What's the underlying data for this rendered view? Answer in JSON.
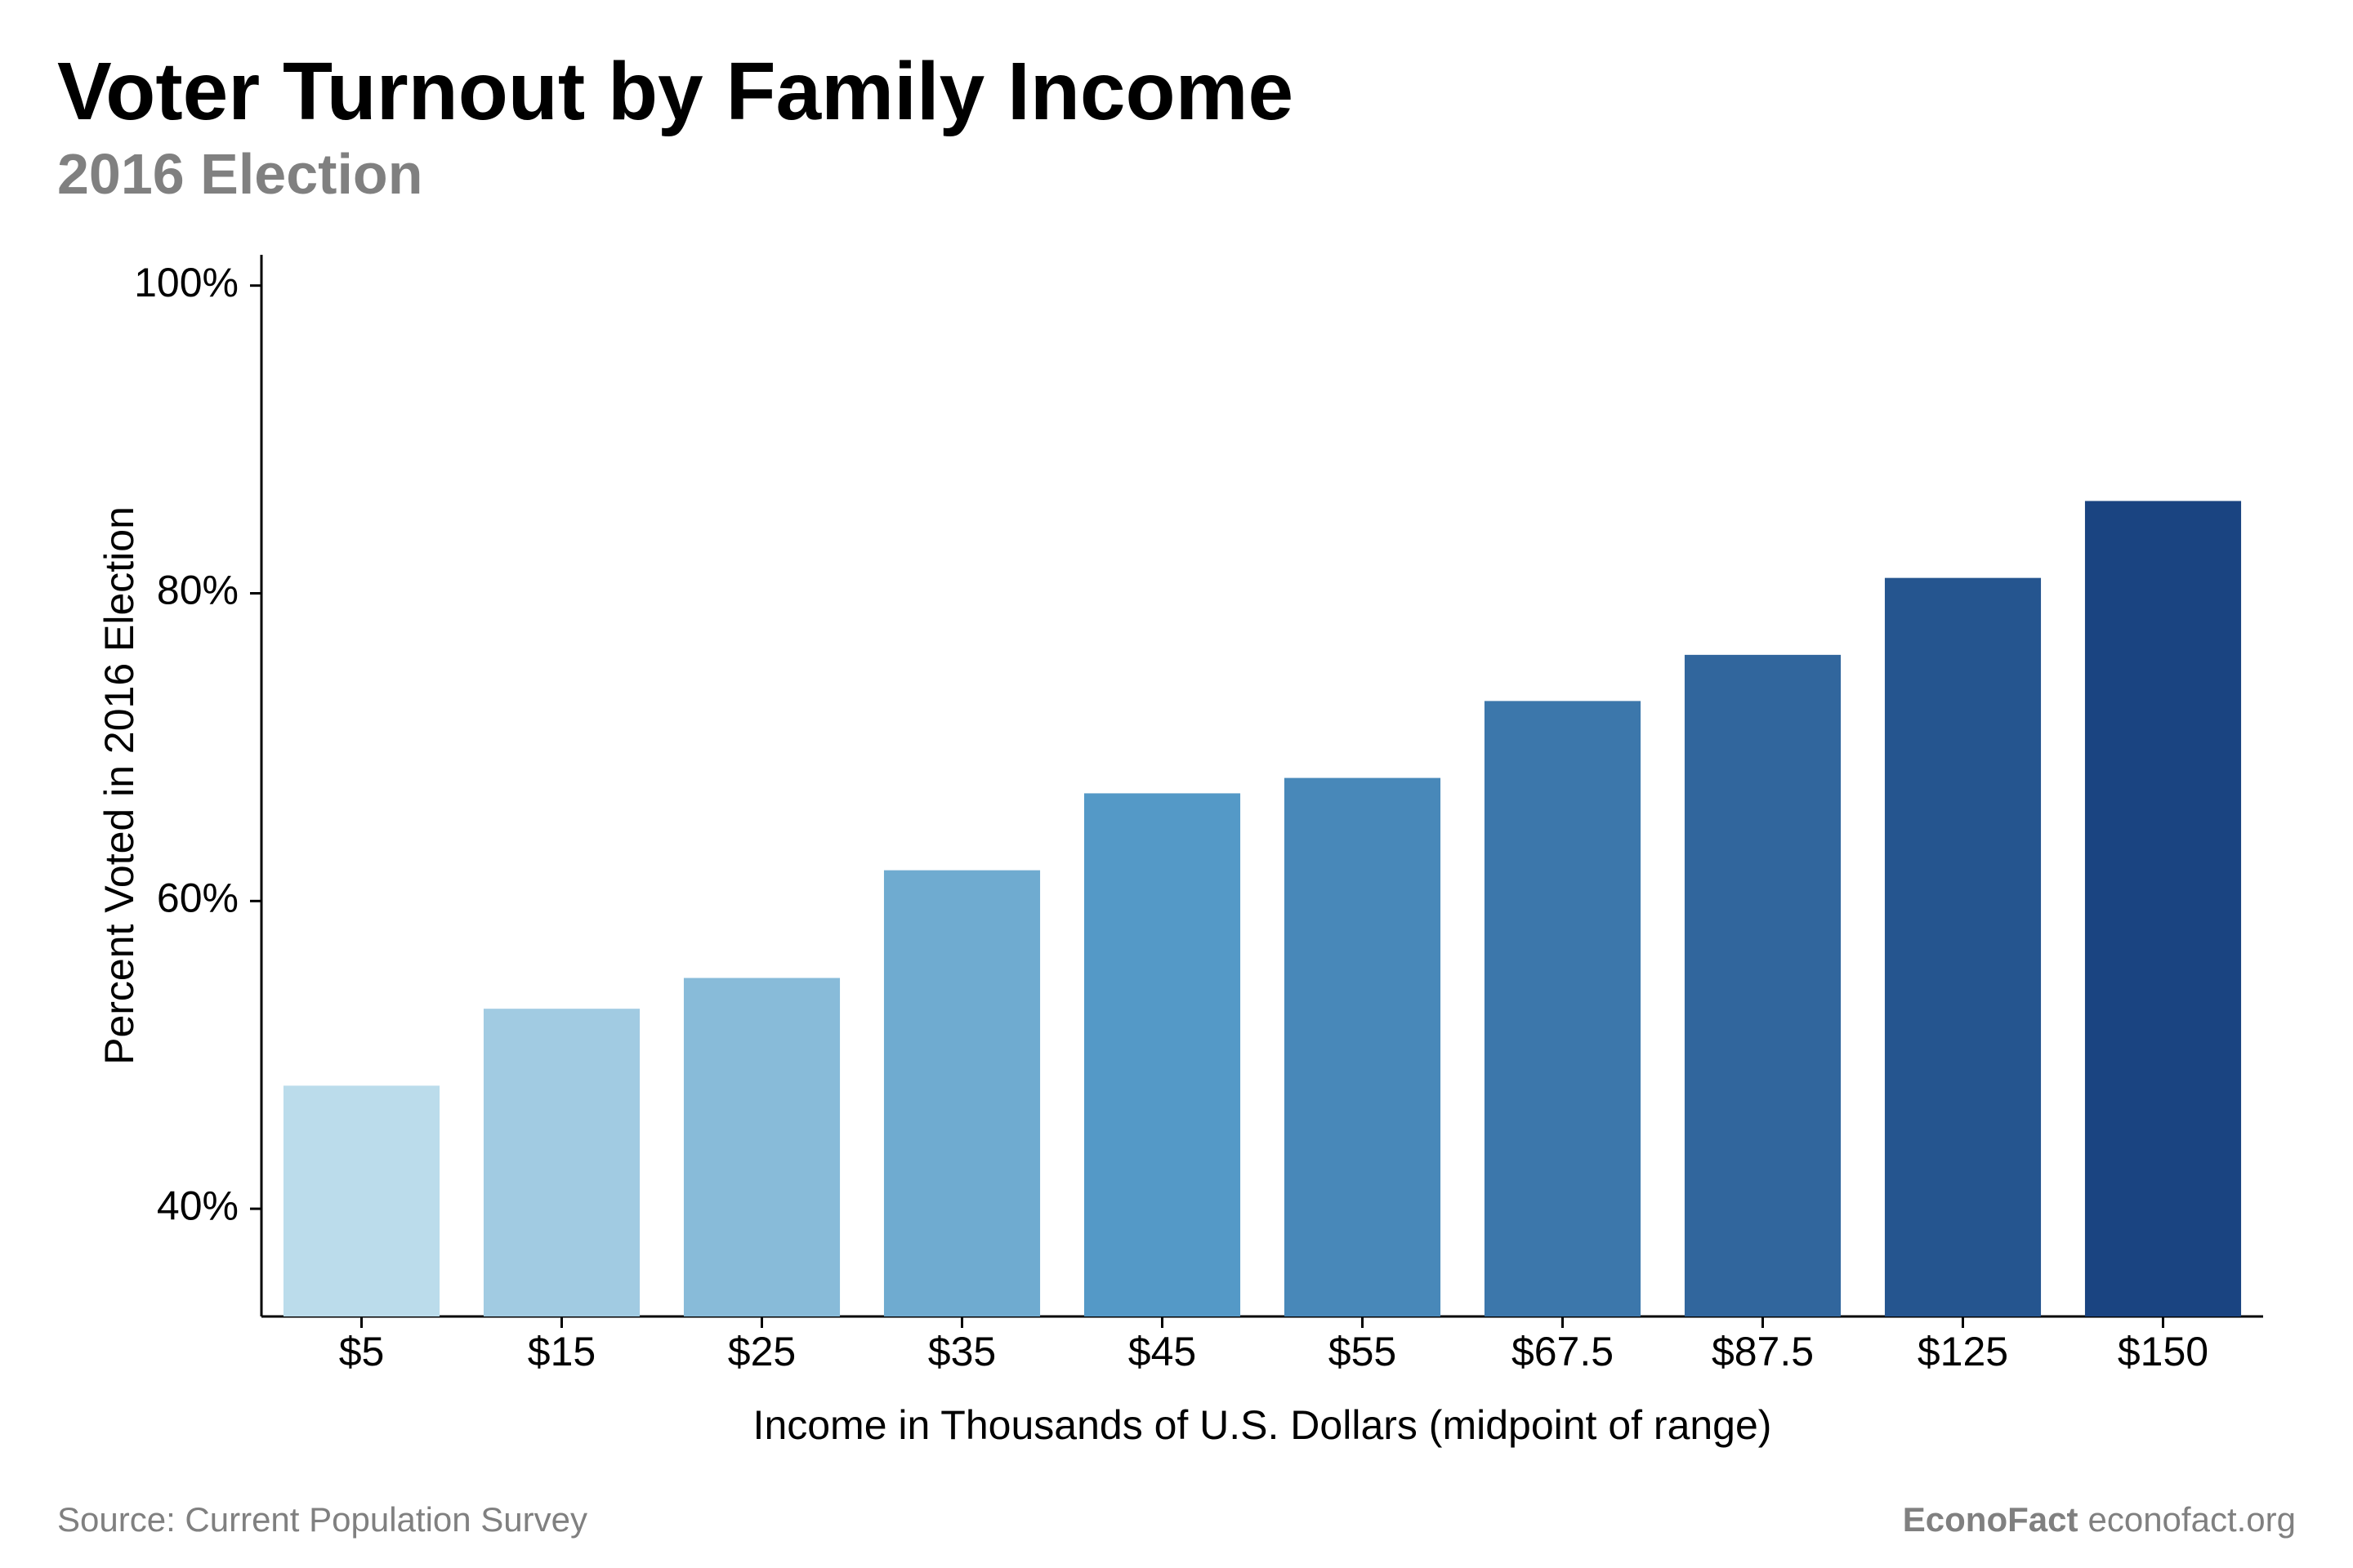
{
  "title": "Voter Turnout by Family Income",
  "subtitle": "2016 Election",
  "title_fontsize": 100,
  "title_color": "#000000",
  "subtitle_fontsize": 70,
  "subtitle_color": "#808080",
  "footer": {
    "source_label": "Source: Current Population Survey",
    "brand": "EconoFact",
    "site": "econofact.org",
    "fontsize": 42,
    "color": "#808080"
  },
  "chart": {
    "type": "bar",
    "background_color": "#ffffff",
    "axis_color": "#000000",
    "axis_width": 3,
    "tick_len": 14,
    "tick_width": 3,
    "tick_label_fontsize": 50,
    "tick_label_color": "#000000",
    "axis_title_fontsize": 50,
    "axis_title_color": "#000000",
    "x": {
      "title": "Income in Thousands of U.S. Dollars (midpoint of range)",
      "labels": [
        "$5",
        "$15",
        "$25",
        "$35",
        "$45",
        "$55",
        "$67.5",
        "$87.5",
        "$125",
        "$150"
      ]
    },
    "y": {
      "title": "Percent Voted in 2016 Election",
      "min": 33,
      "max": 102,
      "ticks": [
        40,
        60,
        80,
        100
      ],
      "tick_labels": [
        "40%",
        "60%",
        "80%",
        "100%"
      ]
    },
    "bars": {
      "values": [
        48,
        53,
        55,
        62,
        67,
        68,
        73,
        76,
        81,
        86
      ],
      "colors": [
        "#bbdceb",
        "#a1cbe2",
        "#88bbd9",
        "#6fabd0",
        "#5499c7",
        "#4888b9",
        "#3c77ab",
        "#31669d",
        "#25558f",
        "#1a4481"
      ],
      "bar_width_ratio": 0.78,
      "gap_ratio": 0.22
    }
  }
}
